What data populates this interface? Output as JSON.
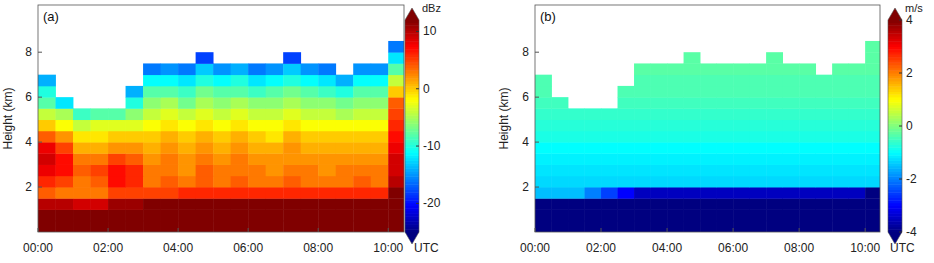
{
  "chart_data": [
    {
      "type": "heatmap",
      "title": "(a)",
      "x_label": "UTC",
      "y_label": "Height (km)",
      "xlim": [
        0,
        10.45
      ],
      "xticks": [
        {
          "value": 0,
          "label": "00:00"
        },
        {
          "value": 2,
          "label": "02:00"
        },
        {
          "value": 4,
          "label": "04:00"
        },
        {
          "value": 6,
          "label": "06:00"
        },
        {
          "value": 8,
          "label": "08:00"
        },
        {
          "value": 10,
          "label": "10:00"
        }
      ],
      "ylim": [
        0,
        10.1
      ],
      "yticks": [
        2,
        4,
        6,
        8
      ],
      "x_bins": [
        0,
        0.5,
        1,
        1.5,
        2,
        2.5,
        3,
        3.5,
        4,
        4.5,
        5,
        5.5,
        6,
        6.5,
        7,
        7.5,
        8,
        8.5,
        9,
        9.5,
        10,
        10.5
      ],
      "y_bins": [
        0,
        0.5,
        1,
        1.5,
        2,
        2.5,
        3,
        3.5,
        4,
        4.5,
        5,
        5.5,
        6,
        6.5,
        7,
        7.5,
        8,
        8.5
      ],
      "values": [
        [
          14,
          14,
          14,
          14,
          14,
          14,
          14,
          14,
          14,
          14,
          14,
          14,
          14,
          14,
          14,
          14,
          14,
          14,
          14,
          14,
          14
        ],
        [
          14,
          14,
          13,
          13,
          14,
          14,
          14,
          14,
          14,
          14,
          14,
          14,
          14,
          14,
          14,
          14,
          14,
          14,
          14,
          14,
          14
        ],
        [
          10,
          10,
          9,
          9,
          11,
          11,
          12,
          12,
          12,
          12,
          12,
          12,
          12,
          12,
          12,
          12,
          12,
          12,
          12,
          12,
          14
        ],
        [
          4,
          3,
          3,
          3,
          5,
          5,
          5,
          5,
          6,
          6,
          6,
          6,
          6,
          6,
          6,
          6,
          6,
          6,
          6,
          6,
          12
        ],
        [
          6,
          5,
          3,
          4,
          7,
          6,
          3,
          4,
          3,
          4,
          3,
          4,
          3,
          3,
          4,
          3,
          3,
          3,
          4,
          3,
          10
        ],
        [
          8,
          7,
          4,
          5,
          7,
          6,
          3,
          3,
          2,
          4,
          3,
          3,
          3,
          2,
          3,
          3,
          2,
          3,
          3,
          3,
          9
        ],
        [
          9,
          7,
          3,
          3,
          5,
          4,
          2,
          3,
          2,
          3,
          2,
          3,
          2,
          2,
          2,
          2,
          2,
          2,
          2,
          2,
          9
        ],
        [
          8,
          5,
          1,
          1,
          2,
          2,
          1,
          2,
          1,
          2,
          1,
          2,
          1,
          1,
          2,
          1,
          1,
          1,
          1,
          1,
          8
        ],
        [
          4,
          2,
          -1,
          -1,
          0,
          0,
          0,
          1,
          0,
          1,
          0,
          1,
          0,
          -1,
          1,
          0,
          0,
          0,
          0,
          0,
          7
        ],
        [
          0,
          -2,
          -4,
          -3,
          -3,
          -3,
          -2,
          -1,
          -2,
          -1,
          -2,
          -1,
          -2,
          -2,
          -1,
          -2,
          -2,
          -2,
          -2,
          -2,
          6
        ],
        [
          -4,
          -5,
          -9,
          -8,
          -8,
          -6,
          -4,
          -3,
          -4,
          -3,
          -4,
          -3,
          -4,
          -4,
          -3,
          -4,
          -4,
          -5,
          -4,
          -4,
          5
        ],
        [
          -8,
          -12,
          null,
          null,
          null,
          -10,
          -6,
          -5,
          -7,
          -5,
          -6,
          -5,
          -6,
          -6,
          -5,
          -6,
          -6,
          -7,
          -6,
          -6,
          4
        ],
        [
          -10,
          null,
          null,
          null,
          null,
          -14,
          -8,
          -8,
          -9,
          -7,
          -8,
          -8,
          -9,
          -8,
          -7,
          -8,
          -9,
          -10,
          -8,
          -8,
          0
        ],
        [
          -14,
          null,
          null,
          null,
          null,
          null,
          -11,
          -11,
          -12,
          -10,
          -11,
          -10,
          -12,
          -11,
          -10,
          -11,
          -12,
          -14,
          -11,
          -11,
          -4
        ],
        [
          null,
          null,
          null,
          null,
          null,
          null,
          -16,
          -15,
          -16,
          -13,
          -15,
          -14,
          -16,
          -15,
          -13,
          -15,
          -16,
          null,
          -15,
          -15,
          -8
        ],
        [
          null,
          null,
          null,
          null,
          null,
          null,
          null,
          null,
          null,
          -18,
          null,
          null,
          null,
          null,
          -18,
          null,
          null,
          null,
          null,
          null,
          -12
        ],
        [
          null,
          null,
          null,
          null,
          null,
          null,
          null,
          null,
          null,
          null,
          null,
          null,
          null,
          null,
          null,
          null,
          null,
          null,
          null,
          null,
          -16
        ]
      ],
      "colorbar": {
        "label": "dBz",
        "range": [
          -25,
          12
        ],
        "ticks": [
          -20,
          -10,
          0,
          10
        ]
      }
    },
    {
      "type": "heatmap",
      "title": "(b)",
      "x_label": "UTC",
      "y_label": "Height (km)",
      "xlim": [
        0,
        10.45
      ],
      "xticks": [
        {
          "value": 0,
          "label": "00:00"
        },
        {
          "value": 2,
          "label": "02:00"
        },
        {
          "value": 4,
          "label": "04:00"
        },
        {
          "value": 6,
          "label": "06:00"
        },
        {
          "value": 8,
          "label": "08:00"
        },
        {
          "value": 10,
          "label": "10:00"
        }
      ],
      "ylim": [
        0,
        10.1
      ],
      "yticks": [
        2,
        4,
        6,
        8
      ],
      "x_bins": [
        0,
        0.5,
        1,
        1.5,
        2,
        2.5,
        3,
        3.5,
        4,
        4.5,
        5,
        5.5,
        6,
        6.5,
        7,
        7.5,
        8,
        8.5,
        9,
        9.5,
        10,
        10.5
      ],
      "y_bins": [
        0,
        0.5,
        1,
        1.5,
        2,
        2.5,
        3,
        3.5,
        4,
        4.5,
        5,
        5.5,
        6,
        6.5,
        7,
        7.5,
        8,
        8.5
      ],
      "values": [
        [
          -4,
          -4,
          -4,
          -4,
          -4,
          -4,
          -4,
          -4,
          -4,
          -4,
          -4,
          -4,
          -4,
          -4,
          -4,
          -4,
          -4,
          -4,
          -4,
          -4,
          -4
        ],
        [
          -4,
          -4,
          -4,
          -4,
          -4,
          -4,
          -4,
          -4,
          -4,
          -4,
          -4,
          -4,
          -4,
          -4,
          -4,
          -4,
          -4,
          -4,
          -4,
          -4,
          -4
        ],
        [
          -4,
          -4,
          -4,
          -4,
          -4,
          -4,
          -4,
          -4,
          -4,
          -4,
          -4,
          -4,
          -4,
          -4,
          -4,
          -4,
          -4,
          -4,
          -4,
          -4,
          -4
        ],
        [
          -1.5,
          -1.5,
          -1.5,
          -2,
          -2.5,
          -3,
          -3.5,
          -3.5,
          -3.5,
          -3.5,
          -3.5,
          -3.5,
          -3.5,
          -3.5,
          -3.5,
          -3.5,
          -3.5,
          -3.5,
          -3.5,
          -3.5,
          -4
        ],
        [
          -1.3,
          -1.3,
          -1.3,
          -1.3,
          -1.3,
          -1.3,
          -1.3,
          -1.3,
          -1.3,
          -1.3,
          -1.3,
          -1.3,
          -1.3,
          -1.3,
          -1.3,
          -1.3,
          -1.3,
          -1.3,
          -1.3,
          -1.3,
          -1.3
        ],
        [
          -1.2,
          -1.2,
          -1.2,
          -1.2,
          -1.2,
          -1.2,
          -1.2,
          -1.2,
          -1.2,
          -1.2,
          -1.2,
          -1.2,
          -1.2,
          -1.2,
          -1.2,
          -1.2,
          -1.2,
          -1.2,
          -1.2,
          -1.2,
          -1.2
        ],
        [
          -1.1,
          -1.1,
          -1.1,
          -1.1,
          -1.1,
          -1.1,
          -1.1,
          -1.1,
          -1.1,
          -1.1,
          -1.1,
          -1.1,
          -1.1,
          -1.1,
          -1.1,
          -1.1,
          -1.1,
          -1.1,
          -1.1,
          -1.1,
          -1.1
        ],
        [
          -1,
          -1,
          -1,
          -1,
          -1,
          -1,
          -1,
          -1,
          -1,
          -1,
          -1,
          -1,
          -1,
          -1,
          -1,
          -1,
          -1,
          -1,
          -1,
          -1,
          -1
        ],
        [
          -0.8,
          -0.8,
          -0.8,
          -0.8,
          -0.8,
          -0.8,
          -0.8,
          -0.8,
          -0.8,
          -0.8,
          -0.8,
          -0.8,
          -0.8,
          -0.8,
          -0.8,
          -0.8,
          -0.8,
          -0.8,
          -0.8,
          -0.8,
          -0.8
        ],
        [
          -0.7,
          -0.7,
          -0.7,
          -0.7,
          -0.7,
          -0.7,
          -0.7,
          -0.7,
          -0.7,
          -0.7,
          -0.7,
          -0.7,
          -0.7,
          -0.7,
          -0.7,
          -0.7,
          -0.7,
          -0.7,
          -0.7,
          -0.7,
          -0.7
        ],
        [
          -0.6,
          -0.6,
          -0.6,
          -0.6,
          -0.6,
          -0.6,
          -0.6,
          -0.6,
          -0.6,
          -0.6,
          -0.6,
          -0.6,
          -0.6,
          -0.6,
          -0.6,
          -0.6,
          -0.6,
          -0.6,
          -0.6,
          -0.6,
          -0.6
        ],
        [
          -0.5,
          -0.5,
          null,
          null,
          null,
          -0.5,
          -0.5,
          -0.5,
          -0.5,
          -0.5,
          -0.5,
          -0.5,
          -0.5,
          -0.5,
          -0.5,
          -0.5,
          -0.5,
          -0.5,
          -0.5,
          -0.5,
          -0.5
        ],
        [
          -0.4,
          null,
          null,
          null,
          null,
          -0.4,
          -0.4,
          -0.4,
          -0.4,
          -0.4,
          -0.4,
          -0.4,
          -0.4,
          -0.4,
          -0.4,
          -0.4,
          -0.4,
          -0.4,
          -0.4,
          -0.4,
          -0.4
        ],
        [
          -0.4,
          null,
          null,
          null,
          null,
          null,
          -0.4,
          -0.4,
          -0.4,
          -0.4,
          -0.4,
          -0.4,
          -0.4,
          -0.4,
          -0.4,
          -0.4,
          -0.4,
          -0.4,
          -0.4,
          -0.4,
          -0.4
        ],
        [
          null,
          null,
          null,
          null,
          null,
          null,
          -0.3,
          -0.3,
          -0.3,
          -0.3,
          -0.3,
          -0.3,
          -0.3,
          -0.3,
          -0.3,
          -0.3,
          -0.3,
          null,
          -0.3,
          -0.3,
          -0.3
        ],
        [
          null,
          null,
          null,
          null,
          null,
          null,
          null,
          null,
          null,
          -0.3,
          null,
          null,
          null,
          null,
          -0.3,
          null,
          null,
          null,
          null,
          null,
          -0.3
        ],
        [
          null,
          null,
          null,
          null,
          null,
          null,
          null,
          null,
          null,
          null,
          null,
          null,
          null,
          null,
          null,
          null,
          null,
          null,
          null,
          null,
          -0.3
        ]
      ],
      "colorbar": {
        "label": "m/s",
        "range": [
          -4,
          4
        ],
        "ticks": [
          -4,
          -2,
          0,
          2,
          4
        ]
      }
    }
  ]
}
